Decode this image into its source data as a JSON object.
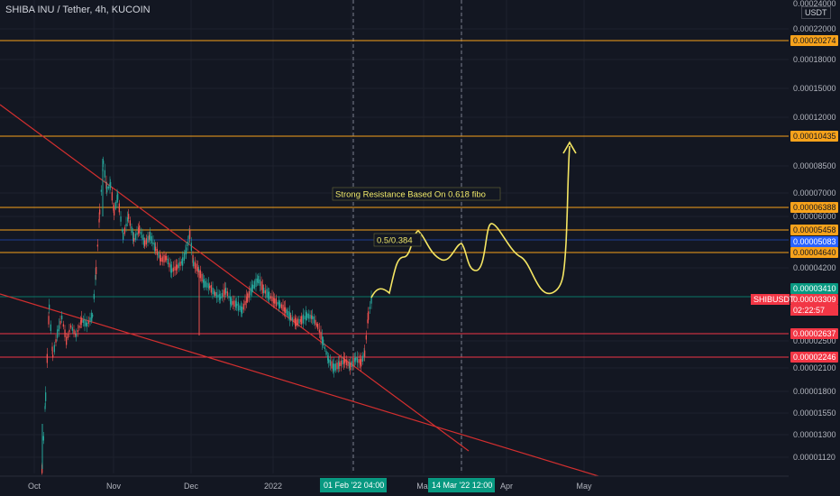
{
  "title": "SHIBA INU / Tether, 4h, KUCOIN",
  "currency_badge": "USDT",
  "colors": {
    "background": "#131722",
    "resistance_line": "#f7a21b",
    "support_line": "#f23645",
    "trend_line": "#d32f2f",
    "annotation": "#f5e663",
    "up_candle": "#26a69a",
    "down_candle": "#ef5350",
    "price_tag_red": "#f23645",
    "highlight_blue": "#2962ff",
    "cursor_tag": "#089981"
  },
  "price_axis_labels": [
    "0.00024000",
    "0.00022000",
    "0.00018000",
    "0.00015000",
    "0.00012000",
    "0.00008500",
    "0.00007000",
    "0.00006000",
    "0.00004200",
    "0.00002500",
    "0.00002100",
    "0.00001800",
    "0.00001550",
    "0.00001300",
    "0.00001120"
  ],
  "price_tags": [
    {
      "label": "0.00020274",
      "color": "#f7a21b",
      "text_color": "#131722"
    },
    {
      "label": "0.00010435",
      "color": "#f7a21b",
      "text_color": "#131722"
    },
    {
      "label": "0.00006388",
      "color": "#f7a21b",
      "text_color": "#131722"
    },
    {
      "label": "0.00005458",
      "color": "#f7a21b",
      "text_color": "#131722"
    },
    {
      "label": "0.00005083",
      "color": "#2962ff",
      "text_color": "#ffffff"
    },
    {
      "label": "0.00004640",
      "color": "#f7a21b",
      "text_color": "#131722"
    },
    {
      "label": "0.00003410",
      "color": "#089981",
      "text_color": "#ffffff"
    },
    {
      "label": "0.00003309",
      "color": "#f23645",
      "text_color": "#ffffff"
    },
    {
      "label": "0.00002637",
      "color": "#f23645",
      "text_color": "#ffffff"
    },
    {
      "label": "0.00002246",
      "color": "#f23645",
      "text_color": "#ffffff"
    }
  ],
  "symbol_tag": "SHIBUSDT",
  "countdown": "02:22:57",
  "time_axis_labels": [
    "Oct",
    "Nov",
    "Dec",
    "2022",
    "Mar",
    "Apr",
    "May"
  ],
  "time_tags": [
    "01 Feb '22  04:00",
    "14 Mar '22  12:00"
  ],
  "annotations": {
    "strong_resistance": "Strong Resistance Based On 0.618 fibo",
    "fib_ratio": "0.5/0.384"
  }
}
